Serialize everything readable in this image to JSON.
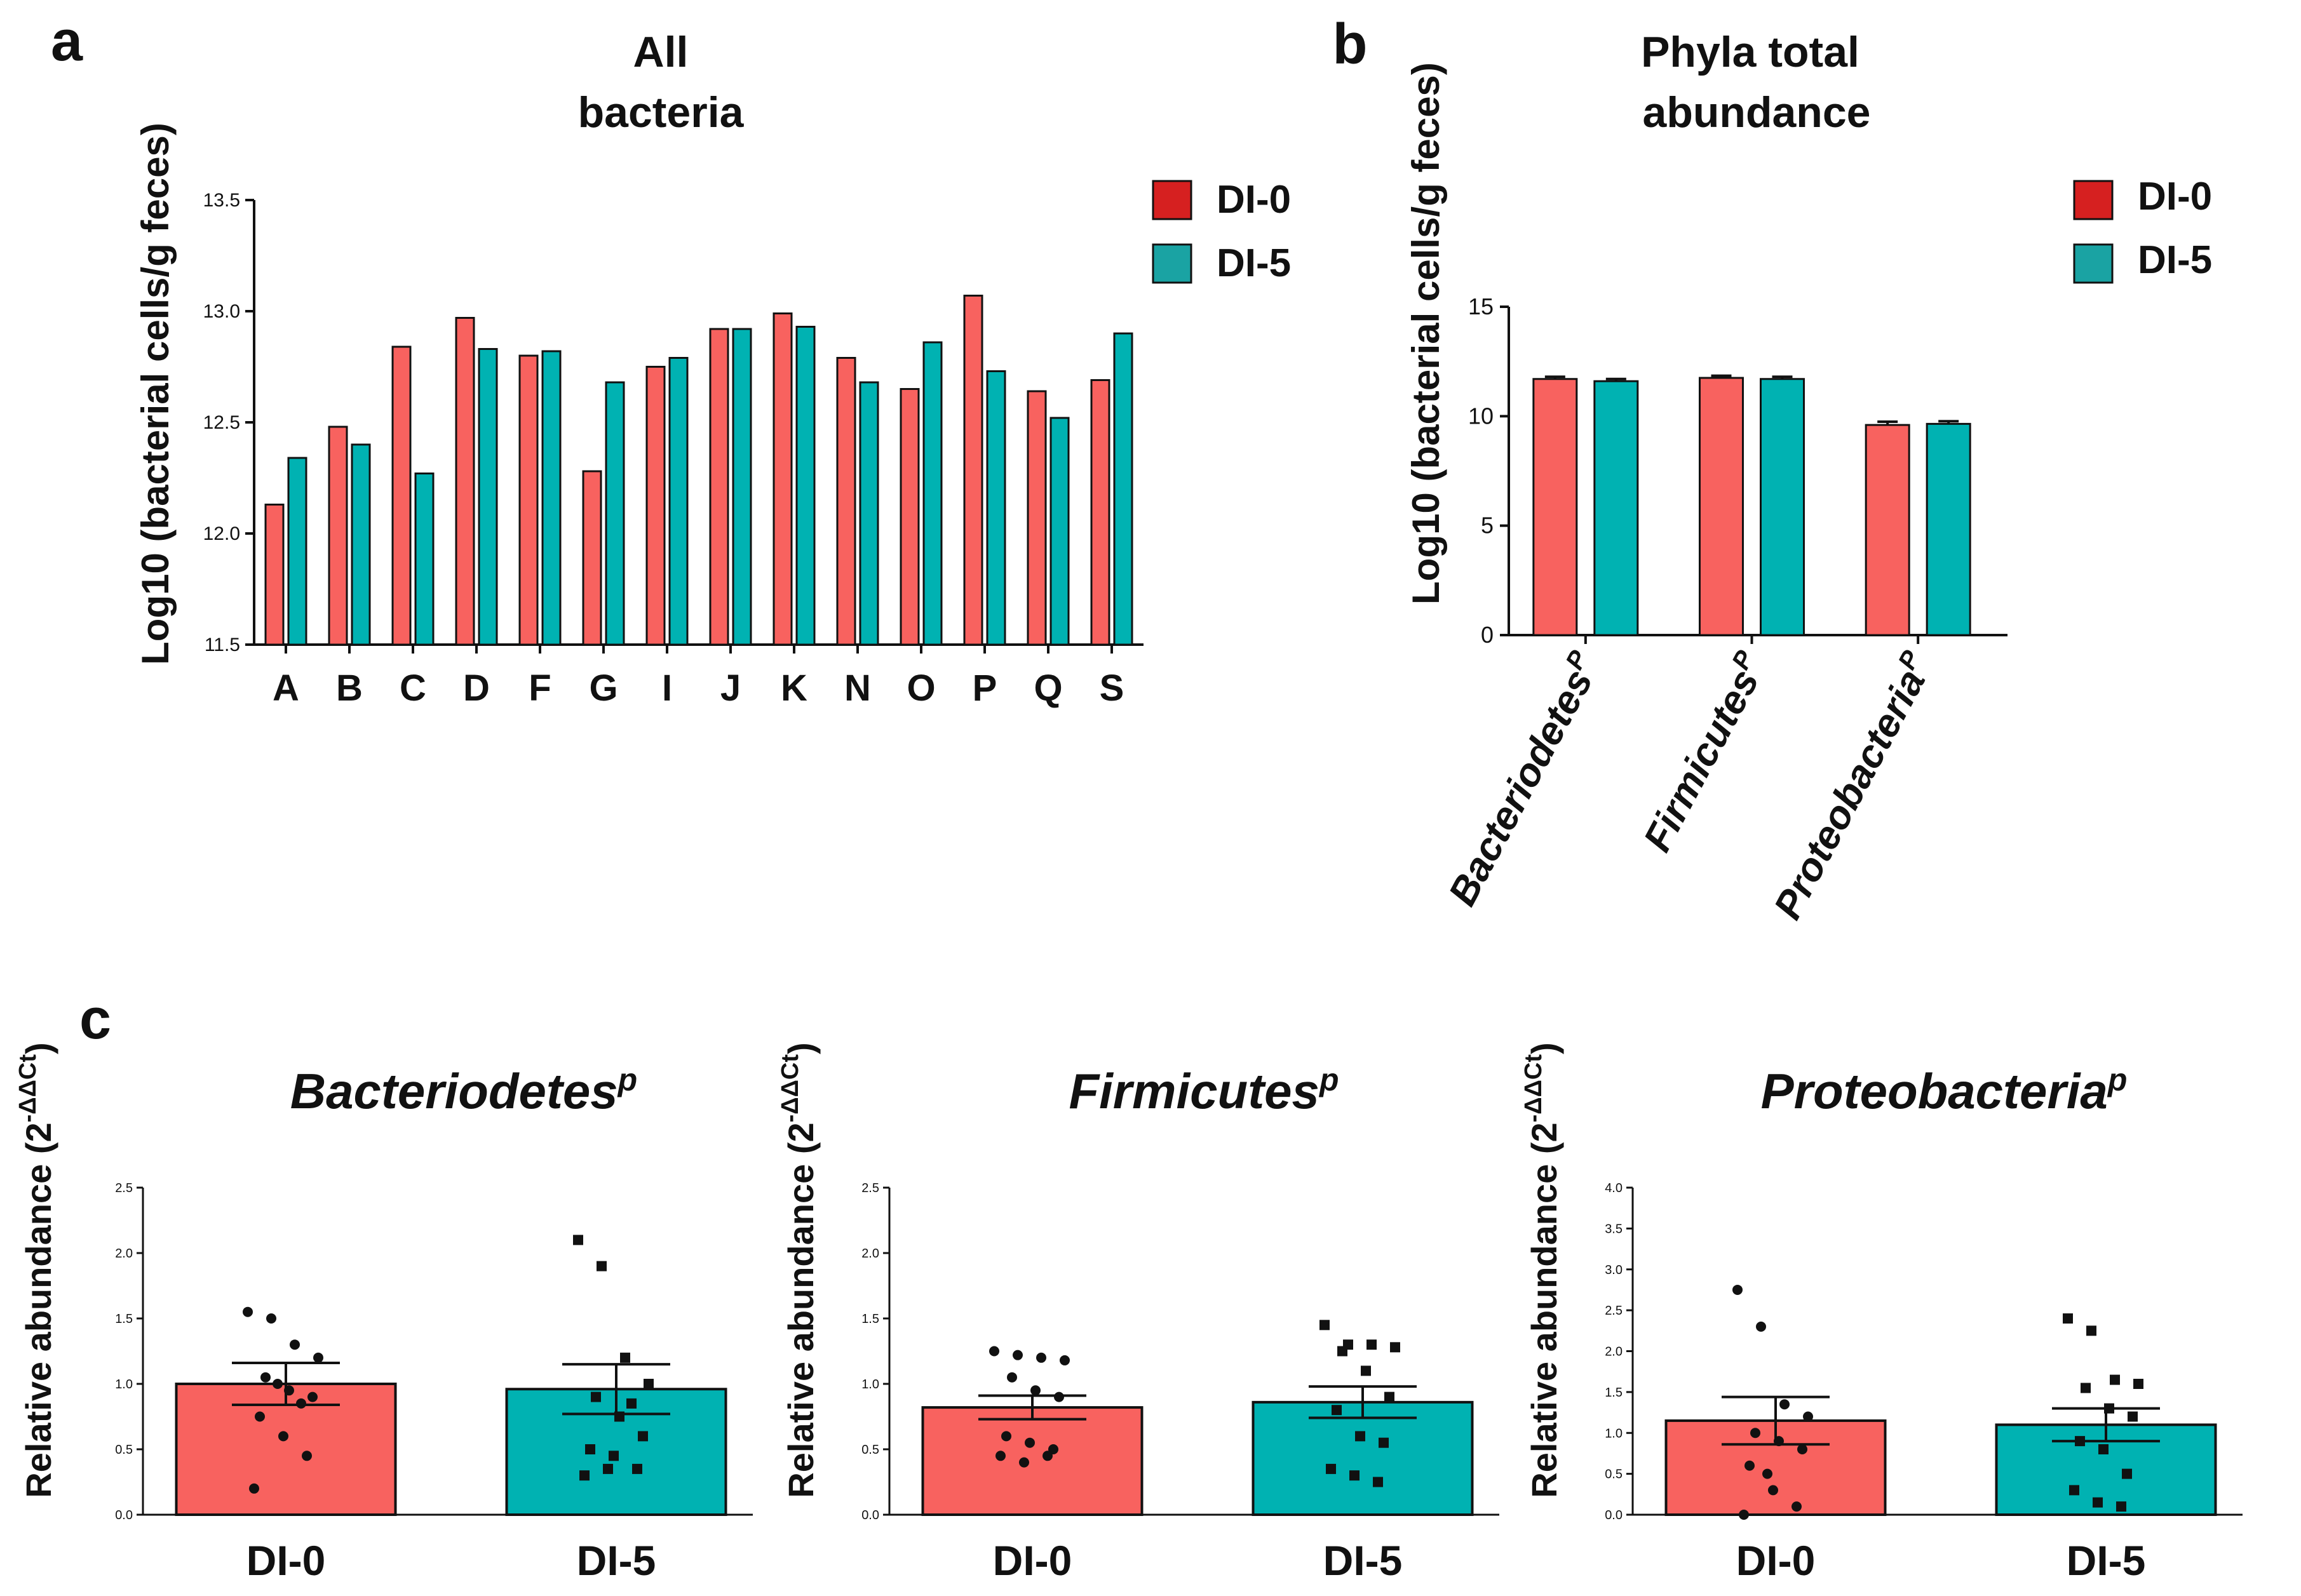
{
  "chart_data": [
    {
      "panel": "a",
      "type": "bar",
      "title": [
        "All",
        "bacteria"
      ],
      "ylabel": "Log10 (bacterial cells/g feces)",
      "xlabel": "",
      "ylim": [
        11.5,
        13.5
      ],
      "yticks": [
        "11.5",
        "12.0",
        "12.5",
        "13.0",
        "13.5"
      ],
      "categories": [
        "A",
        "B",
        "C",
        "D",
        "F",
        "G",
        "I",
        "J",
        "K",
        "N",
        "O",
        "P",
        "Q",
        "S"
      ],
      "series": [
        {
          "name": "DI-0",
          "color": "#f8625f",
          "values": [
            12.13,
            12.48,
            12.84,
            12.97,
            12.8,
            12.28,
            12.75,
            12.92,
            12.99,
            12.79,
            12.65,
            13.07,
            12.64,
            12.69
          ]
        },
        {
          "name": "DI-5",
          "color": "#00b2b2",
          "values": [
            12.34,
            12.4,
            12.27,
            12.83,
            12.82,
            12.68,
            12.79,
            12.92,
            12.93,
            12.68,
            12.86,
            12.73,
            12.52,
            12.9
          ]
        }
      ],
      "legend": "top-right",
      "grid": false
    },
    {
      "panel": "b",
      "type": "bar",
      "title": [
        "Phyla total",
        "abundance"
      ],
      "ylabel": "Log10 (bacterial cells/g feces)",
      "xlabel": "",
      "ylim": [
        0,
        15
      ],
      "yticks": [
        "0",
        "5",
        "10",
        "15"
      ],
      "categories": [
        "Bacteriodetes",
        "Firmicutes",
        "Proteobacteria"
      ],
      "category_superscript": "P",
      "series": [
        {
          "name": "DI-0",
          "color": "#f8625f",
          "values": [
            11.7,
            11.75,
            9.6
          ],
          "errors": [
            0.1,
            0.1,
            0.15
          ]
        },
        {
          "name": "DI-5",
          "color": "#00b2b2",
          "values": [
            11.6,
            11.7,
            9.65
          ],
          "errors": [
            0.1,
            0.1,
            0.12
          ]
        }
      ],
      "legend": "top-right",
      "grid": false
    },
    {
      "panel": "c",
      "type": "bar",
      "title": "Bacteriodetes",
      "title_superscript": "p",
      "ylabel": "Relative abundance (2",
      "ylabel_superscript": "-ΔΔCt",
      "ylabel_close": ")",
      "ylim": [
        0,
        2.5
      ],
      "yticks": [
        "0.0",
        "0.5",
        "1.0",
        "1.5",
        "2.0",
        "2.5"
      ],
      "categories": [
        "DI-0",
        "DI-5"
      ],
      "series": [
        {
          "name": "DI-0",
          "color": "#f8625f",
          "value": 1.0,
          "sem": 0.16,
          "points": [
            1.55,
            1.5,
            1.3,
            1.2,
            1.05,
            0.95,
            0.9,
            0.75,
            0.6,
            0.45,
            0.2,
            1.0,
            0.85
          ]
        },
        {
          "name": "DI-5",
          "color": "#00b2b2",
          "value": 0.96,
          "sem": 0.19,
          "points": [
            2.1,
            1.9,
            1.2,
            1.0,
            0.9,
            0.75,
            0.6,
            0.5,
            0.45,
            0.35,
            0.3,
            0.35,
            0.85
          ]
        }
      ]
    },
    {
      "panel": "c",
      "type": "bar",
      "title": "Firmicutes",
      "title_superscript": "p",
      "ylabel": "Relative abundance (2",
      "ylabel_superscript": "-ΔΔCt",
      "ylabel_close": ")",
      "ylim": [
        0,
        2.5
      ],
      "yticks": [
        "0.0",
        "0.5",
        "1.0",
        "1.5",
        "2.0",
        "2.5"
      ],
      "categories": [
        "DI-0",
        "DI-5"
      ],
      "series": [
        {
          "name": "DI-0",
          "color": "#f8625f",
          "value": 0.82,
          "sem": 0.09,
          "points": [
            1.25,
            1.22,
            1.2,
            1.18,
            1.05,
            0.95,
            0.9,
            0.6,
            0.55,
            0.5,
            0.45,
            0.4,
            0.45
          ]
        },
        {
          "name": "DI-5",
          "color": "#00b2b2",
          "value": 0.86,
          "sem": 0.12,
          "points": [
            1.45,
            1.3,
            1.3,
            1.28,
            1.25,
            1.1,
            0.9,
            0.8,
            0.6,
            0.55,
            0.35,
            0.3,
            0.25
          ]
        }
      ]
    },
    {
      "panel": "c",
      "type": "bar",
      "title": "Proteobacteria",
      "title_superscript": "p",
      "ylabel": "Relative abundance (2",
      "ylabel_superscript": "-ΔΔCt",
      "ylabel_close": ")",
      "ylim": [
        0,
        4.0
      ],
      "yticks": [
        "0.0",
        "0.5",
        "1.0",
        "1.5",
        "2.0",
        "2.5",
        "3.0",
        "3.5",
        "4.0"
      ],
      "categories": [
        "DI-0",
        "DI-5"
      ],
      "series": [
        {
          "name": "DI-0",
          "color": "#f8625f",
          "value": 1.15,
          "sem": 0.29,
          "points": [
            2.75,
            2.3,
            1.35,
            1.2,
            1.0,
            0.9,
            0.8,
            0.6,
            0.3,
            0.1,
            0.0,
            0.5
          ]
        },
        {
          "name": "DI-5",
          "color": "#00b2b2",
          "value": 1.1,
          "sem": 0.2,
          "points": [
            2.4,
            2.25,
            1.65,
            1.6,
            1.55,
            1.3,
            1.2,
            0.9,
            0.8,
            0.5,
            0.3,
            0.15,
            0.1
          ]
        }
      ]
    }
  ],
  "panel_letters": [
    "a",
    "b",
    "c"
  ],
  "legend_a": {
    "items": [
      "DI-0",
      "DI-5"
    ],
    "colors": [
      "#d62020",
      "#1aa3a3"
    ]
  },
  "legend_b": {
    "items": [
      "DI-0",
      "DI-5"
    ],
    "colors": [
      "#d62020",
      "#1aa3a3"
    ]
  }
}
